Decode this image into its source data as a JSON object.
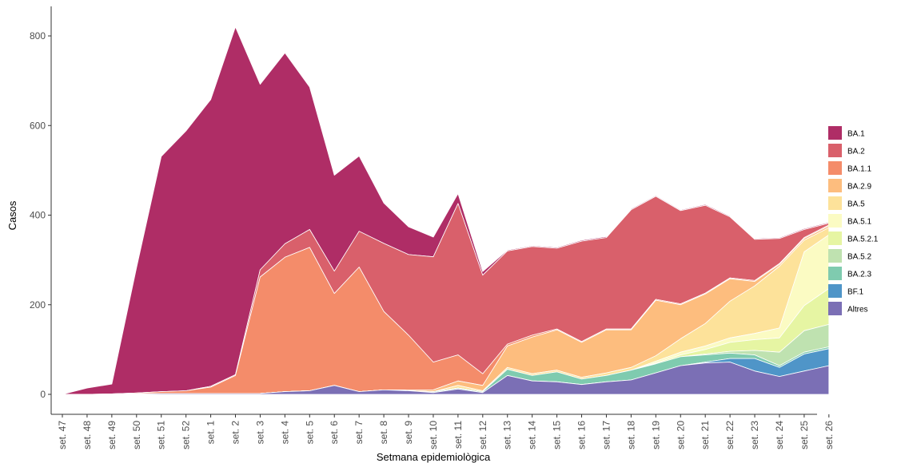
{
  "chart_data": {
    "type": "area",
    "stacked": true,
    "xlabel": "Setmana epidemiològica",
    "ylabel": "Casos",
    "ylim": [
      0,
      840
    ],
    "yticks": [
      0,
      200,
      400,
      600,
      800
    ],
    "grid": false,
    "legend_position": "right",
    "categories": [
      "set. 47",
      "set. 48",
      "set. 49",
      "set. 50",
      "set. 51",
      "set. 52",
      "set. 1",
      "set. 2",
      "set. 3",
      "set. 4",
      "set. 5",
      "set. 6",
      "set. 7",
      "set. 8",
      "set. 9",
      "set. 10",
      "set. 11",
      "set. 12",
      "set. 13",
      "set. 14",
      "set. 15",
      "set. 16",
      "set. 17",
      "set. 18",
      "set. 19",
      "set. 20",
      "set. 21",
      "set. 22",
      "set. 23",
      "set. 24",
      "set. 25",
      "set. 26"
    ],
    "series": [
      {
        "name": "Altres",
        "color": "#7b6fb5",
        "values": [
          0,
          0,
          0,
          1,
          2,
          2,
          2,
          2,
          2,
          6,
          8,
          20,
          6,
          10,
          8,
          4,
          12,
          4,
          42,
          30,
          28,
          22,
          28,
          32,
          48,
          64,
          70,
          72,
          52,
          40,
          52,
          64
        ]
      },
      {
        "name": "BF.1",
        "color": "#4f95c8",
        "values": [
          0,
          0,
          0,
          0,
          0,
          0,
          0,
          0,
          0,
          0,
          0,
          0,
          0,
          0,
          0,
          0,
          0,
          0,
          0,
          0,
          0,
          0,
          0,
          0,
          0,
          0,
          2,
          8,
          28,
          20,
          38,
          38
        ]
      },
      {
        "name": "BA.2.3",
        "color": "#7fcbaf",
        "values": [
          0,
          0,
          0,
          0,
          0,
          0,
          0,
          0,
          0,
          0,
          0,
          0,
          0,
          0,
          0,
          2,
          2,
          2,
          14,
          12,
          22,
          12,
          14,
          22,
          20,
          20,
          16,
          12,
          8,
          4,
          4,
          4
        ]
      },
      {
        "name": "BA.5.2",
        "color": "#bfe2b0",
        "values": [
          0,
          0,
          0,
          0,
          0,
          0,
          0,
          0,
          0,
          0,
          0,
          0,
          0,
          0,
          0,
          0,
          0,
          0,
          0,
          0,
          0,
          0,
          0,
          0,
          0,
          0,
          2,
          4,
          10,
          30,
          48,
          50
        ]
      },
      {
        "name": "BA.5.2.1",
        "color": "#e6f5a3",
        "values": [
          0,
          0,
          0,
          0,
          0,
          0,
          0,
          0,
          0,
          0,
          0,
          0,
          0,
          0,
          0,
          0,
          0,
          0,
          0,
          0,
          0,
          0,
          0,
          0,
          2,
          4,
          10,
          20,
          24,
          32,
          56,
          80
        ]
      },
      {
        "name": "BA.5.1",
        "color": "#fbfbc3",
        "values": [
          0,
          0,
          0,
          0,
          0,
          0,
          0,
          0,
          0,
          0,
          0,
          0,
          0,
          0,
          0,
          0,
          0,
          0,
          0,
          0,
          0,
          0,
          0,
          0,
          4,
          6,
          8,
          10,
          14,
          22,
          120,
          120
        ]
      },
      {
        "name": "BA.5",
        "color": "#fde29a",
        "values": [
          0,
          0,
          0,
          0,
          0,
          0,
          0,
          0,
          0,
          0,
          0,
          0,
          0,
          0,
          0,
          0,
          6,
          2,
          4,
          4,
          4,
          4,
          6,
          6,
          12,
          30,
          50,
          82,
          106,
          138,
          26,
          16
        ]
      },
      {
        "name": "BA.2.9",
        "color": "#fdbd7e",
        "values": [
          0,
          0,
          0,
          0,
          0,
          0,
          0,
          0,
          0,
          0,
          0,
          0,
          0,
          0,
          2,
          4,
          10,
          12,
          48,
          82,
          90,
          78,
          96,
          84,
          124,
          76,
          66,
          50,
          10,
          4,
          4,
          4
        ]
      },
      {
        "name": "BA.1.1",
        "color": "#f48c6a",
        "values": [
          0,
          0,
          1,
          2,
          4,
          6,
          14,
          40,
          260,
          300,
          320,
          205,
          278,
          175,
          122,
          62,
          58,
          26,
          4,
          4,
          2,
          2,
          2,
          2,
          2,
          2,
          2,
          2,
          2,
          2,
          2,
          2
        ]
      },
      {
        "name": "BA.2",
        "color": "#d9606b",
        "values": [
          0,
          0,
          0,
          0,
          0,
          0,
          2,
          2,
          16,
          30,
          40,
          50,
          80,
          152,
          180,
          235,
          338,
          220,
          208,
          198,
          180,
          224,
          204,
          266,
          230,
          208,
          196,
          136,
          92,
          56,
          18,
          4
        ]
      },
      {
        "name": "BA.1",
        "color": "#af2d66",
        "values": [
          0,
          14,
          22,
          280,
          525,
          580,
          640,
          776,
          414,
          426,
          318,
          214,
          168,
          90,
          62,
          44,
          22,
          8,
          2,
          2,
          2,
          2,
          2,
          2,
          2,
          2,
          2,
          2,
          2,
          2,
          2,
          2
        ]
      }
    ]
  }
}
